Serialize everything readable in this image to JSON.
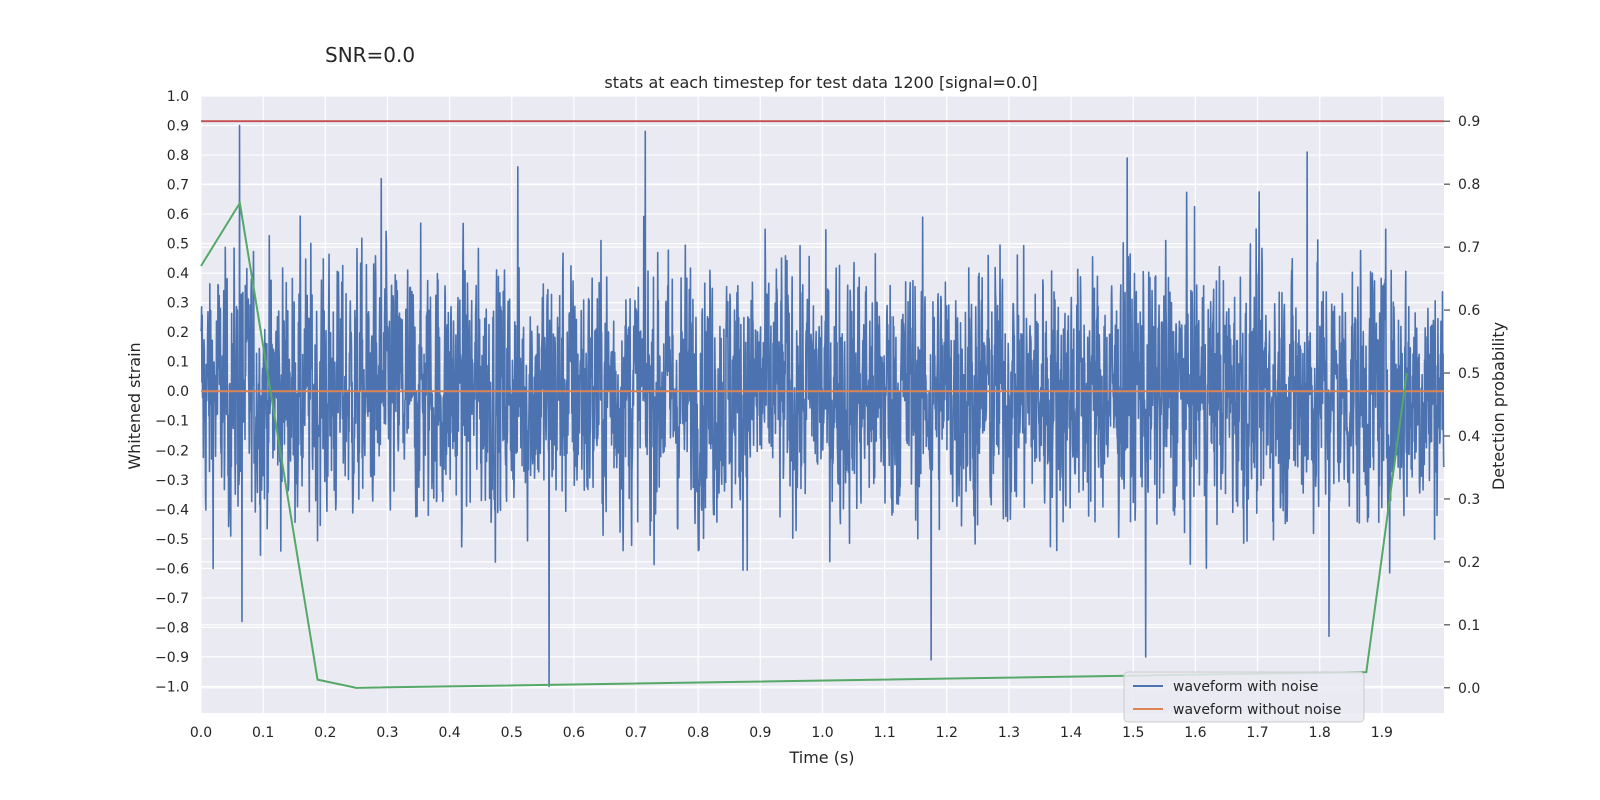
{
  "chart_data": {
    "type": "line",
    "suptitle": "SNR=0.0",
    "title": "stats at each timestep for test data 1200 [signal=0.0]",
    "xlabel": "Time (s)",
    "ylabel": "Whitened strain",
    "y2label": "Detection probability",
    "xlim": [
      0.0,
      2.0
    ],
    "ylim": [
      -1.09,
      1.0
    ],
    "y2lim": [
      -0.04,
      0.94
    ],
    "xticks": [
      0.0,
      0.1,
      0.2,
      0.3,
      0.4,
      0.5,
      0.6,
      0.7,
      0.8,
      0.9,
      1.0,
      1.1,
      1.2,
      1.3,
      1.4,
      1.5,
      1.6,
      1.7,
      1.8,
      1.9
    ],
    "xtick_labels": [
      "0.0",
      "0.1",
      "0.2",
      "0.3",
      "0.4",
      "0.5",
      "0.6",
      "0.7",
      "0.8",
      "0.9",
      "1.0",
      "1.1",
      "1.2",
      "1.3",
      "1.4",
      "1.5",
      "1.6",
      "1.7",
      "1.8",
      "1.9"
    ],
    "yticks": [
      1.0,
      0.9,
      0.8,
      0.7,
      0.6,
      0.5,
      0.4,
      0.3,
      0.2,
      0.1,
      0.0,
      -0.1,
      -0.2,
      -0.3,
      -0.4,
      -0.5,
      -0.6,
      -0.7,
      -0.8,
      -0.9,
      -1.0
    ],
    "ytick_labels": [
      "1.0",
      "0.9",
      "0.8",
      "0.7",
      "0.6",
      "0.5",
      "0.4",
      "0.3",
      "0.2",
      "0.1",
      "0.0",
      "−0.1",
      "−0.2",
      "−0.3",
      "−0.4",
      "−0.5",
      "−0.6",
      "−0.7",
      "−0.8",
      "−0.9",
      "−1.0"
    ],
    "y2ticks": [
      0.9,
      0.8,
      0.7,
      0.6,
      0.5,
      0.4,
      0.3,
      0.2,
      0.1,
      0.0
    ],
    "y2tick_labels": [
      "0.9",
      "0.8",
      "0.7",
      "0.6",
      "0.5",
      "0.4",
      "0.3",
      "0.2",
      "0.1",
      "0.0"
    ],
    "threshold": 0.9,
    "series": [
      {
        "name": "waveform with noise",
        "color": "#4c72b0",
        "axis": "left",
        "sample_rate_hz": 2048,
        "duration_s": 2.0,
        "noise_std": 0.2,
        "peaks": [
          [
            0.062,
            0.9
          ],
          [
            0.066,
            -0.78
          ],
          [
            0.29,
            0.72
          ],
          [
            0.51,
            0.76
          ],
          [
            0.56,
            -1.0
          ],
          [
            0.715,
            0.88
          ],
          [
            1.175,
            -0.91
          ],
          [
            1.49,
            0.79
          ],
          [
            1.52,
            -0.9
          ],
          [
            1.78,
            0.81
          ],
          [
            1.815,
            -0.83
          ]
        ]
      },
      {
        "name": "waveform without noise",
        "color": "#dd8452",
        "axis": "left",
        "x": [
          0.0,
          2.0
        ],
        "y": [
          0.0,
          0.0
        ]
      },
      {
        "name": "detection probability",
        "color": "#55a868",
        "axis": "right",
        "x": [
          0.0,
          0.0625,
          0.1875,
          0.25,
          1.875,
          1.94
        ],
        "y": [
          0.67,
          0.77,
          0.013,
          0.0,
          0.025,
          0.5
        ]
      }
    ],
    "colors": {
      "background": "#eaeaf2",
      "grid": "#ffffff",
      "threshold": "#c44e52",
      "text": "#262626"
    },
    "legend": {
      "location": "lower-right",
      "entries": [
        "waveform with noise",
        "waveform without noise"
      ]
    }
  }
}
